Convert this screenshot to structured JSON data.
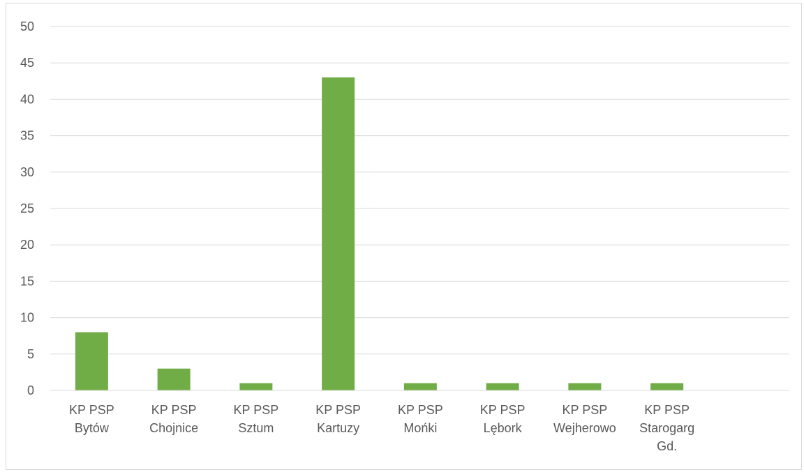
{
  "chart_data": {
    "type": "bar",
    "title": "",
    "xlabel": "",
    "ylabel": "",
    "categories": [
      [
        "KP PSP",
        "Bytów"
      ],
      [
        "KP PSP",
        "Chojnice"
      ],
      [
        "KP PSP",
        "Sztum"
      ],
      [
        "KP PSP",
        "Kartuzy"
      ],
      [
        "KP PSP",
        "Mońki"
      ],
      [
        "KP PSP",
        "Lębork"
      ],
      [
        "KP PSP",
        "Wejherowo"
      ],
      [
        "KP PSP",
        "Starogarg",
        "Gd."
      ]
    ],
    "values": [
      8,
      3,
      1,
      43,
      1,
      1,
      1,
      1
    ],
    "ylim": [
      0,
      50
    ],
    "yticks": [
      0,
      5,
      10,
      15,
      20,
      25,
      30,
      35,
      40,
      45,
      50
    ],
    "grid": true,
    "legend": "none",
    "bar_color": "#70ad47",
    "grid_color": "#d9d9d9",
    "axis_color": "#d9d9d9",
    "text_color": "#595959"
  }
}
